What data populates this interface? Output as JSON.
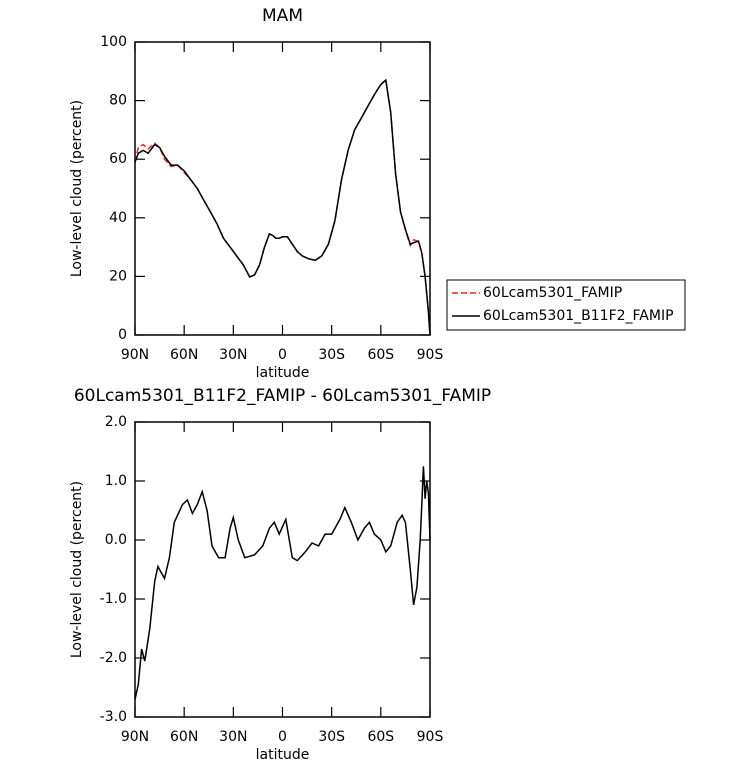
{
  "chart_data": [
    {
      "type": "line",
      "title": "MAM",
      "xlabel": "latitude",
      "ylabel": "Low-level cloud (percent)",
      "x": [
        90,
        88,
        85,
        82,
        78,
        75,
        72,
        68,
        64,
        60,
        56,
        52,
        48,
        44,
        40,
        36,
        32,
        28,
        24,
        20,
        17,
        14,
        11,
        8,
        6,
        4,
        2,
        0,
        -3,
        -6,
        -9,
        -12,
        -16,
        -20,
        -24,
        -28,
        -32,
        -36,
        -40,
        -44,
        -48,
        -52,
        -56,
        -60,
        -63,
        -66,
        -69,
        -72,
        -75,
        -78,
        -80,
        -83,
        -85,
        -87,
        -89,
        -90
      ],
      "series": [
        {
          "name": "60Lcam5301_FAMIP",
          "color": "#e8251e",
          "linestyle": "dashed",
          "values": [
            59,
            64,
            65,
            63.5,
            65.5,
            64,
            60,
            57.5,
            58,
            55.5,
            53,
            50,
            46,
            42,
            38,
            33,
            30,
            27,
            24,
            19.8,
            20.5,
            24,
            30,
            34.5,
            34,
            33,
            33,
            33.5,
            33.5,
            31,
            28.5,
            27,
            26,
            25.5,
            27,
            31,
            39,
            53,
            63,
            70,
            74,
            78,
            82,
            85.5,
            87,
            76,
            55,
            42,
            36,
            30.5,
            32.5,
            32,
            28,
            20,
            8,
            0
          ]
        },
        {
          "name": "60Lcam5301_B11F2_FAMIP",
          "color": "#000000",
          "linestyle": "solid",
          "values": [
            59,
            62,
            63,
            62,
            65,
            64,
            61,
            58,
            58,
            56,
            53,
            50,
            46,
            42,
            38,
            33,
            30,
            27,
            24,
            19.8,
            20.5,
            24,
            30,
            34.5,
            34,
            33,
            33,
            33.5,
            33.5,
            31,
            28.5,
            27,
            26,
            25.5,
            27,
            31,
            39,
            53,
            63,
            70,
            74,
            78,
            82,
            85.5,
            87,
            76,
            55,
            42,
            36,
            31,
            31.5,
            32,
            28,
            20,
            8,
            0
          ]
        }
      ],
      "xlim": [
        90,
        -90
      ],
      "ylim": [
        0,
        100
      ],
      "xticks": [
        {
          "value": 90,
          "label": "90N"
        },
        {
          "value": 60,
          "label": "60N"
        },
        {
          "value": 30,
          "label": "30N"
        },
        0,
        {
          "value": -30,
          "label": "30S"
        },
        {
          "value": -60,
          "label": "60S"
        },
        {
          "value": -90,
          "label": "90S"
        }
      ],
      "yticks": [
        0,
        20,
        40,
        60,
        80,
        100
      ],
      "legend": "right"
    },
    {
      "type": "line",
      "title": "60Lcam5301_B11F2_FAMIP - 60Lcam5301_FAMIP",
      "xlabel": "latitude",
      "ylabel": "Low-level cloud (percent)",
      "x": [
        90,
        88,
        86,
        84,
        81,
        78,
        76,
        74,
        72,
        69,
        66,
        61,
        58,
        55,
        52,
        49,
        46,
        43,
        39,
        35,
        32,
        30,
        27,
        23,
        17,
        12,
        8,
        5,
        2,
        -2,
        -6,
        -9,
        -14,
        -18,
        -22,
        -26,
        -30,
        -35,
        -38,
        -42,
        -46,
        -50,
        -53,
        -56,
        -60,
        -63,
        -66,
        -70,
        -73,
        -75,
        -78,
        -80,
        -82,
        -84,
        -85,
        -86,
        -87,
        -88,
        -89,
        -90
      ],
      "values": [
        -2.7,
        -2.45,
        -1.85,
        -2.05,
        -1.5,
        -0.7,
        -0.45,
        -0.55,
        -0.65,
        -0.3,
        0.3,
        0.6,
        0.68,
        0.45,
        0.6,
        0.82,
        0.5,
        -0.1,
        -0.3,
        -0.3,
        0.2,
        0.38,
        0.0,
        -0.3,
        -0.25,
        -0.1,
        0.2,
        0.3,
        0.1,
        0.35,
        -0.3,
        -0.35,
        -0.2,
        -0.05,
        -0.1,
        0.1,
        0.1,
        0.35,
        0.55,
        0.3,
        0.0,
        0.2,
        0.3,
        0.1,
        0.0,
        -0.2,
        -0.1,
        0.3,
        0.42,
        0.3,
        -0.5,
        -1.1,
        -0.8,
        0.0,
        0.6,
        1.25,
        0.7,
        1.0,
        0.8,
        0.0
      ],
      "color": "#000000",
      "xlim": [
        90,
        -90
      ],
      "ylim": [
        -3,
        2
      ],
      "xticks": [
        {
          "value": 90,
          "label": "90N"
        },
        {
          "value": 60,
          "label": "60N"
        },
        {
          "value": 30,
          "label": "30N"
        },
        0,
        {
          "value": -30,
          "label": "30S"
        },
        {
          "value": -60,
          "label": "60S"
        },
        {
          "value": -90,
          "label": "90S"
        }
      ],
      "yticks": [
        {
          "value": -3,
          "label": "-3.0"
        },
        {
          "value": -2,
          "label": "-2.0"
        },
        {
          "value": -1,
          "label": "-1.0"
        },
        {
          "value": 0,
          "label": "0.0"
        },
        {
          "value": 1,
          "label": "1.0"
        },
        {
          "value": 2,
          "label": "2.0"
        }
      ]
    }
  ]
}
